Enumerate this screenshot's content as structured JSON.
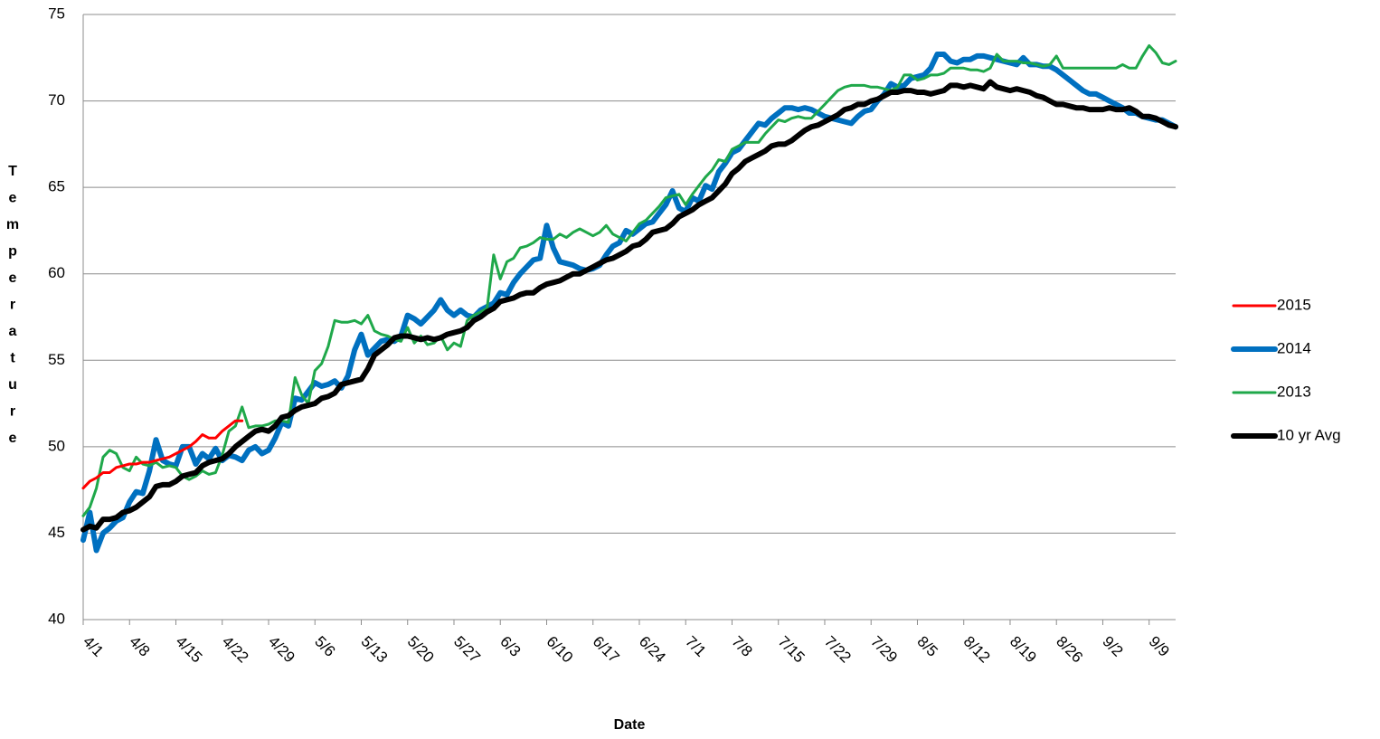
{
  "chart_data": {
    "type": "line",
    "x_label": "Date",
    "y_label": "Temperature",
    "categories": [
      "4/1",
      null,
      null,
      null,
      null,
      null,
      null,
      "4/8",
      null,
      null,
      null,
      null,
      null,
      null,
      "4/15",
      null,
      null,
      null,
      null,
      null,
      null,
      "4/22",
      null,
      null,
      null,
      null,
      null,
      null,
      "4/29",
      null,
      null,
      null,
      null,
      null,
      null,
      "5/6",
      null,
      null,
      null,
      null,
      null,
      null,
      "5/13",
      null,
      null,
      null,
      null,
      null,
      null,
      "5/20",
      null,
      null,
      null,
      null,
      null,
      null,
      "5/27",
      null,
      null,
      null,
      null,
      null,
      null,
      "6/3",
      null,
      null,
      null,
      null,
      null,
      null,
      "6/10",
      null,
      null,
      null,
      null,
      null,
      null,
      "6/17",
      null,
      null,
      null,
      null,
      null,
      null,
      "6/24",
      null,
      null,
      null,
      null,
      null,
      null,
      "7/1",
      null,
      null,
      null,
      null,
      null,
      null,
      "7/8",
      null,
      null,
      null,
      null,
      null,
      null,
      "7/15",
      null,
      null,
      null,
      null,
      null,
      null,
      "7/22",
      null,
      null,
      null,
      null,
      null,
      null,
      "7/29",
      null,
      null,
      null,
      null,
      null,
      null,
      "8/5",
      null,
      null,
      null,
      null,
      null,
      null,
      "8/12",
      null,
      null,
      null,
      null,
      null,
      null,
      "8/19",
      null,
      null,
      null,
      null,
      null,
      null,
      "8/26",
      null,
      null,
      null,
      null,
      null,
      null,
      "9/2",
      null,
      null,
      null,
      null,
      null,
      null,
      "9/9",
      null,
      null,
      null,
      null
    ],
    "series": [
      {
        "name": "2015",
        "color": "#ff0000",
        "width": 3,
        "values": [
          47.6,
          48.0,
          48.2,
          48.5,
          48.5,
          48.8,
          48.9,
          49.0,
          49.0,
          49.1,
          49.1,
          49.2,
          49.3,
          49.4,
          49.6,
          49.8,
          50.0,
          50.3,
          50.7,
          50.5,
          50.5,
          50.9,
          51.2,
          51.5,
          51.5,
          null,
          null,
          null,
          null,
          null,
          null,
          null,
          null,
          null,
          null,
          null,
          null,
          null,
          null,
          null,
          null,
          null,
          null,
          null,
          null,
          null,
          null,
          null,
          null,
          null,
          null,
          null,
          null,
          null,
          null,
          null,
          null,
          null,
          null,
          null,
          null,
          null,
          null,
          null,
          null,
          null,
          null,
          null,
          null,
          null,
          null,
          null,
          null,
          null,
          null,
          null,
          null,
          null,
          null,
          null,
          null,
          null,
          null,
          null,
          null,
          null,
          null,
          null,
          null,
          null,
          null,
          null,
          null,
          null,
          null,
          null,
          null,
          null,
          null,
          null,
          null,
          null,
          null,
          null,
          null,
          null,
          null,
          null,
          null,
          null,
          null,
          null,
          null,
          null,
          null,
          null,
          null,
          null,
          null,
          null,
          null,
          null,
          null,
          null,
          null,
          null,
          null,
          null,
          null,
          null,
          null,
          null,
          null,
          null,
          null,
          null,
          null,
          null,
          null,
          null,
          null,
          null,
          null,
          null,
          null,
          null,
          null,
          null,
          null,
          null,
          null,
          null,
          null,
          null,
          null,
          null,
          null,
          null,
          null,
          null,
          null,
          null,
          null,
          null,
          null,
          null
        ]
      },
      {
        "name": "2014",
        "color": "#0070c0",
        "width": 6,
        "values": [
          44.6,
          46.2,
          44.0,
          45.0,
          45.3,
          45.7,
          45.9,
          46.8,
          47.4,
          47.3,
          48.6,
          50.4,
          49.2,
          49.0,
          48.9,
          50.0,
          50.0,
          49.0,
          49.6,
          49.3,
          49.9,
          49.2,
          49.5,
          49.4,
          49.2,
          49.8,
          50.0,
          49.6,
          49.8,
          50.5,
          51.4,
          51.2,
          52.8,
          52.7,
          53.2,
          53.7,
          53.5,
          53.6,
          53.8,
          53.4,
          54.1,
          55.6,
          56.5,
          55.3,
          55.7,
          56.1,
          56.2,
          56.1,
          56.4,
          57.6,
          57.4,
          57.1,
          57.5,
          57.9,
          58.5,
          57.9,
          57.6,
          57.9,
          57.6,
          57.5,
          57.9,
          58.1,
          58.3,
          58.9,
          58.8,
          59.5,
          60.0,
          60.4,
          60.8,
          60.9,
          62.8,
          61.5,
          60.7,
          60.6,
          60.5,
          60.3,
          60.2,
          60.3,
          60.5,
          61.1,
          61.6,
          61.8,
          62.5,
          62.3,
          62.6,
          62.9,
          63.0,
          63.5,
          64.0,
          64.8,
          63.8,
          63.6,
          64.4,
          64.2,
          65.1,
          64.9,
          65.9,
          66.4,
          67.0,
          67.2,
          67.7,
          68.2,
          68.7,
          68.6,
          69.0,
          69.3,
          69.6,
          69.6,
          69.5,
          69.6,
          69.5,
          69.3,
          69.1,
          69.0,
          68.9,
          68.8,
          68.7,
          69.1,
          69.4,
          69.5,
          70.0,
          70.4,
          71.0,
          70.8,
          70.9,
          71.3,
          71.4,
          71.5,
          71.9,
          72.7,
          72.7,
          72.3,
          72.2,
          72.4,
          72.4,
          72.6,
          72.6,
          72.5,
          72.4,
          72.3,
          72.2,
          72.1,
          72.5,
          72.1,
          72.1,
          72.0,
          72.0,
          71.8,
          71.5,
          71.2,
          70.9,
          70.6,
          70.4,
          70.4,
          70.2,
          70.0,
          69.8,
          69.6,
          69.3,
          69.3,
          69.1,
          69.0,
          68.9,
          68.9,
          68.7,
          68.5
        ]
      },
      {
        "name": "2013",
        "color": "#1fa84a",
        "width": 3,
        "values": [
          46.0,
          46.5,
          47.6,
          49.4,
          49.8,
          49.6,
          48.8,
          48.6,
          49.4,
          49.0,
          48.9,
          49.1,
          48.8,
          48.9,
          48.8,
          48.3,
          48.1,
          48.3,
          48.6,
          48.4,
          48.5,
          49.5,
          50.9,
          51.2,
          52.3,
          51.1,
          51.2,
          51.2,
          51.3,
          51.5,
          51.5,
          51.4,
          54.0,
          53.0,
          52.5,
          54.4,
          54.8,
          55.8,
          57.3,
          57.2,
          57.2,
          57.3,
          57.1,
          57.6,
          56.7,
          56.5,
          56.4,
          56.2,
          56.1,
          56.9,
          56.0,
          56.4,
          55.9,
          56.0,
          56.4,
          55.6,
          56.0,
          55.8,
          57.3,
          57.6,
          57.8,
          58.0,
          61.1,
          59.7,
          60.7,
          60.9,
          61.5,
          61.6,
          61.8,
          62.1,
          62.0,
          62.0,
          62.3,
          62.1,
          62.4,
          62.6,
          62.4,
          62.2,
          62.4,
          62.8,
          62.3,
          62.1,
          61.9,
          62.4,
          62.9,
          63.1,
          63.5,
          63.9,
          64.4,
          64.5,
          64.6,
          64.0,
          64.6,
          65.1,
          65.6,
          66.0,
          66.6,
          66.5,
          67.2,
          67.4,
          67.6,
          67.6,
          67.6,
          68.1,
          68.5,
          68.9,
          68.8,
          69.0,
          69.1,
          69.0,
          69.0,
          69.4,
          69.8,
          70.2,
          70.6,
          70.8,
          70.9,
          70.9,
          70.9,
          70.8,
          70.8,
          70.7,
          70.6,
          70.8,
          71.5,
          71.5,
          71.2,
          71.3,
          71.5,
          71.5,
          71.6,
          71.9,
          71.9,
          71.9,
          71.8,
          71.8,
          71.7,
          71.9,
          72.7,
          72.3,
          72.3,
          72.3,
          72.2,
          72.2,
          72.1,
          72.0,
          72.1,
          72.6,
          71.9,
          71.9,
          71.9,
          71.9,
          71.9,
          71.9,
          71.9,
          71.9,
          71.9,
          72.1,
          71.9,
          71.9,
          72.6,
          73.2,
          72.8,
          72.2,
          72.1,
          72.3
        ]
      },
      {
        "name": "10 yr Avg",
        "color": "#000000",
        "width": 6,
        "values": [
          45.2,
          45.4,
          45.3,
          45.8,
          45.8,
          45.9,
          46.2,
          46.3,
          46.5,
          46.8,
          47.1,
          47.7,
          47.8,
          47.8,
          48.0,
          48.3,
          48.4,
          48.5,
          48.9,
          49.1,
          49.2,
          49.3,
          49.6,
          50.0,
          50.3,
          50.6,
          50.9,
          51.0,
          50.9,
          51.2,
          51.7,
          51.8,
          52.1,
          52.3,
          52.4,
          52.5,
          52.8,
          52.9,
          53.1,
          53.6,
          53.7,
          53.8,
          53.9,
          54.5,
          55.3,
          55.6,
          55.9,
          56.3,
          56.4,
          56.4,
          56.3,
          56.2,
          56.3,
          56.2,
          56.3,
          56.5,
          56.6,
          56.7,
          56.9,
          57.3,
          57.5,
          57.8,
          58.0,
          58.4,
          58.5,
          58.6,
          58.8,
          58.9,
          58.9,
          59.2,
          59.4,
          59.5,
          59.6,
          59.8,
          60.0,
          60.0,
          60.2,
          60.4,
          60.6,
          60.8,
          60.9,
          61.1,
          61.3,
          61.6,
          61.7,
          62.0,
          62.4,
          62.5,
          62.6,
          62.9,
          63.3,
          63.5,
          63.7,
          64.0,
          64.2,
          64.4,
          64.8,
          65.2,
          65.8,
          66.1,
          66.5,
          66.7,
          66.9,
          67.1,
          67.4,
          67.5,
          67.5,
          67.7,
          68.0,
          68.3,
          68.5,
          68.6,
          68.8,
          69.0,
          69.2,
          69.5,
          69.6,
          69.8,
          69.8,
          70.0,
          70.1,
          70.3,
          70.5,
          70.5,
          70.6,
          70.6,
          70.5,
          70.5,
          70.4,
          70.5,
          70.6,
          70.9,
          70.9,
          70.8,
          70.9,
          70.8,
          70.7,
          71.1,
          70.8,
          70.7,
          70.6,
          70.7,
          70.6,
          70.5,
          70.3,
          70.2,
          70.0,
          69.8,
          69.8,
          69.7,
          69.6,
          69.6,
          69.5,
          69.5,
          69.5,
          69.6,
          69.5,
          69.5,
          69.6,
          69.4,
          69.1,
          69.1,
          69.0,
          68.8,
          68.6,
          68.5
        ]
      }
    ],
    "ylim": [
      40,
      75
    ],
    "yticks": [
      40,
      45,
      50,
      55,
      60,
      65,
      70,
      75
    ],
    "grid": true,
    "legend": "right"
  }
}
